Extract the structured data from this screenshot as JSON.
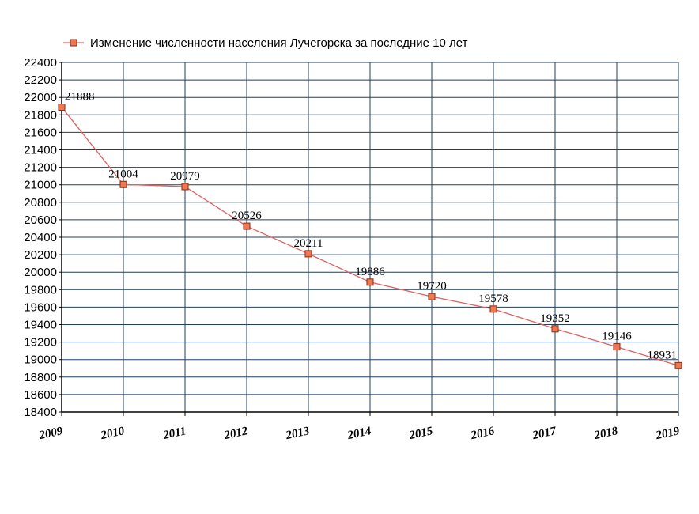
{
  "chart_data": {
    "type": "line",
    "title": "",
    "xlabel": "",
    "ylabel": "",
    "x": [
      "2009",
      "2010",
      "2011",
      "2012",
      "2013",
      "2014",
      "2015",
      "2016",
      "2017",
      "2018",
      "2019"
    ],
    "series": [
      {
        "name": "Изменение численности населения Лучегорска за последние 10 лет",
        "values": [
          21888,
          21004,
          20979,
          20526,
          20211,
          19886,
          19720,
          19578,
          19352,
          19146,
          18931
        ]
      }
    ],
    "data_labels": [
      "21888",
      "21004",
      "20979",
      "20526",
      "20211",
      "19886",
      "19720",
      "19578",
      "19352",
      "19146",
      "18931"
    ],
    "ylim": [
      18400,
      22400
    ],
    "y_ticks": [
      "18400",
      "18600",
      "18800",
      "19000",
      "19200",
      "19400",
      "19600",
      "19800",
      "20000",
      "20200",
      "20400",
      "20600",
      "20800",
      "21000",
      "21200",
      "21400",
      "21600",
      "21800",
      "22000",
      "22200",
      "22400"
    ],
    "grid": true,
    "legend": "top",
    "colors": {
      "line": "#e06060",
      "marker_fill": "#f07850",
      "marker_stroke": "#8a2a10",
      "grid": "#1f3f5f",
      "axis": "#000000"
    }
  }
}
